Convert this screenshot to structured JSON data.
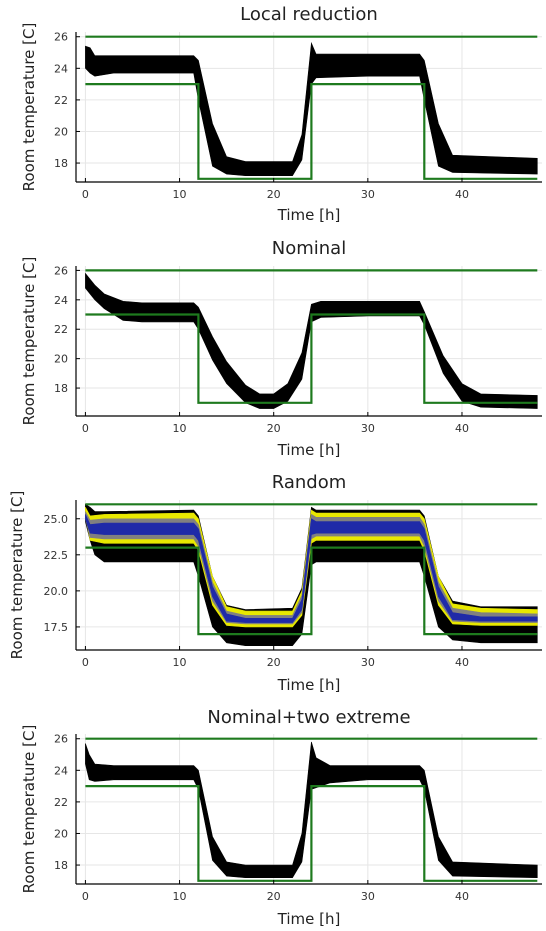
{
  "chart_data": [
    {
      "type": "line",
      "title": "Local reduction",
      "xlabel": "Time [h]",
      "ylabel": "Room temperature [C]",
      "xlim": [
        -1,
        48.5
      ],
      "ylim": [
        16.8,
        26.3
      ],
      "xticks": [
        0,
        10,
        20,
        30,
        40
      ],
      "yticks": [
        18,
        20,
        22,
        24,
        26
      ],
      "ytick_labels": [
        "18",
        "20",
        "22",
        "24",
        "26"
      ],
      "grid": true,
      "bounds": {
        "color": "#1e7a1e",
        "upper": {
          "x": [
            0,
            48
          ],
          "y": [
            26,
            26
          ]
        },
        "lower": {
          "x": [
            0,
            12,
            12,
            24,
            24,
            36,
            36,
            48
          ],
          "y": [
            23,
            23,
            17,
            17,
            23,
            23,
            17,
            17
          ]
        }
      },
      "bands": [
        {
          "name": "trajectories",
          "color": "#000000",
          "x": [
            0,
            0.5,
            1,
            3,
            6,
            11.5,
            12,
            13.5,
            15,
            17,
            22,
            23,
            24,
            24.5,
            30,
            35.5,
            36,
            37.5,
            39,
            48
          ],
          "upper": [
            25.4,
            25.3,
            24.8,
            24.8,
            24.8,
            24.8,
            24.5,
            20.5,
            18.4,
            18.1,
            18.1,
            19.8,
            25.6,
            24.9,
            24.9,
            24.9,
            24.5,
            20.5,
            18.5,
            18.3
          ],
          "lower": [
            24.0,
            23.7,
            23.5,
            23.7,
            23.7,
            23.7,
            22.0,
            17.8,
            17.3,
            17.2,
            17.2,
            18.2,
            23.0,
            23.4,
            23.5,
            23.5,
            22.0,
            17.8,
            17.4,
            17.3
          ]
        }
      ]
    },
    {
      "type": "line",
      "title": "Nominal",
      "xlabel": "Time [h]",
      "ylabel": "Room temperature [C]",
      "xlim": [
        -1,
        48.5
      ],
      "ylim": [
        16.1,
        26.3
      ],
      "xticks": [
        0,
        10,
        20,
        30,
        40
      ],
      "yticks": [
        18,
        20,
        22,
        24,
        26
      ],
      "ytick_labels": [
        "18",
        "20",
        "22",
        "24",
        "26"
      ],
      "grid": true,
      "bounds": {
        "color": "#1e7a1e",
        "upper": {
          "x": [
            0,
            48
          ],
          "y": [
            26,
            26
          ]
        },
        "lower": {
          "x": [
            0,
            12,
            12,
            24,
            24,
            36,
            36,
            48
          ],
          "y": [
            23,
            23,
            17,
            17,
            23,
            23,
            17,
            17
          ]
        }
      },
      "bands": [
        {
          "name": "trajectories",
          "color": "#000000",
          "x": [
            0,
            1,
            2,
            4,
            6,
            11.5,
            12,
            13.5,
            15,
            17,
            18.5,
            20,
            21.5,
            23,
            24,
            25,
            30,
            35.5,
            36,
            38,
            40,
            42,
            48
          ],
          "upper": [
            25.8,
            25.0,
            24.4,
            23.9,
            23.8,
            23.8,
            23.5,
            21.5,
            19.8,
            18.2,
            17.6,
            17.6,
            18.3,
            20.4,
            23.7,
            23.9,
            23.9,
            23.9,
            23.2,
            20.2,
            18.3,
            17.6,
            17.5
          ],
          "lower": [
            24.8,
            24.0,
            23.4,
            22.6,
            22.5,
            22.5,
            22.0,
            19.9,
            18.3,
            17.0,
            16.6,
            16.6,
            17.1,
            18.6,
            22.5,
            22.8,
            22.9,
            22.9,
            22.3,
            19.0,
            17.1,
            16.7,
            16.6
          ]
        }
      ]
    },
    {
      "type": "line",
      "title": "Random",
      "xlabel": "Time [h]",
      "ylabel": "Room temperature [C]",
      "xlim": [
        -1,
        48.5
      ],
      "ylim": [
        15.9,
        26.3
      ],
      "xticks": [
        0,
        10,
        20,
        30,
        40
      ],
      "yticks": [
        17.5,
        20,
        22.5,
        25
      ],
      "ytick_labels": [
        "17.5",
        "20.0",
        "22.5",
        "25.0"
      ],
      "grid": true,
      "bounds": {
        "color": "#1e7a1e",
        "upper": {
          "x": [
            0,
            48
          ],
          "y": [
            26,
            26
          ]
        },
        "lower": {
          "x": [
            0,
            12,
            12,
            24,
            24,
            36,
            36,
            48
          ],
          "y": [
            23,
            23,
            17,
            17,
            23,
            23,
            17,
            17
          ]
        }
      },
      "bands": [
        {
          "name": "trajectories",
          "color": "#000000",
          "x": [
            0,
            0.5,
            1,
            2,
            11.5,
            12,
            13.5,
            15,
            17,
            22,
            23,
            24,
            24.5,
            30,
            35.5,
            36,
            37.5,
            39,
            42,
            48
          ],
          "upper": [
            26.0,
            25.8,
            25.5,
            25.5,
            25.6,
            25.2,
            21.0,
            19.0,
            18.7,
            18.8,
            20.2,
            25.8,
            25.6,
            25.6,
            25.6,
            25.2,
            21.0,
            19.3,
            18.9,
            18.9
          ],
          "lower": [
            24.8,
            23.5,
            22.5,
            22.0,
            22.0,
            21.0,
            17.5,
            16.4,
            16.2,
            16.2,
            17.0,
            21.8,
            22.0,
            22.0,
            22.0,
            21.0,
            17.5,
            16.6,
            16.4,
            16.4
          ]
        },
        {
          "name": "trajectories",
          "color": "#e8e800",
          "x": [
            0,
            0.5,
            2,
            11.5,
            12,
            13.5,
            15,
            17,
            22,
            23,
            24,
            24.5,
            30,
            35.5,
            36,
            37.5,
            39,
            42,
            48
          ],
          "upper": [
            25.8,
            25.2,
            25.3,
            25.4,
            25.0,
            21.0,
            18.9,
            18.6,
            18.6,
            20.0,
            25.6,
            25.4,
            25.4,
            25.4,
            25.0,
            21.0,
            19.1,
            18.8,
            18.7
          ],
          "lower": [
            25.2,
            23.5,
            23.3,
            23.3,
            22.8,
            19.0,
            17.6,
            17.5,
            17.5,
            18.3,
            23.3,
            23.5,
            23.5,
            23.5,
            22.8,
            19.0,
            17.7,
            17.6,
            17.6
          ]
        },
        {
          "name": "trajectories",
          "color": "#808080",
          "x": [
            0,
            0.5,
            2,
            11.5,
            12,
            13.5,
            15,
            17,
            22,
            23,
            24,
            24.5,
            30,
            35.5,
            36,
            37.5,
            39,
            42,
            48
          ],
          "upper": [
            25.5,
            24.9,
            25.0,
            25.0,
            24.6,
            20.6,
            18.6,
            18.3,
            18.3,
            19.7,
            25.3,
            25.1,
            25.1,
            25.1,
            24.6,
            20.6,
            18.8,
            18.5,
            18.4
          ],
          "lower": [
            25.0,
            23.7,
            23.6,
            23.6,
            23.1,
            19.3,
            17.8,
            17.7,
            17.7,
            18.5,
            23.6,
            23.8,
            23.8,
            23.8,
            23.1,
            19.3,
            17.9,
            17.8,
            17.8
          ]
        },
        {
          "name": "trajectories",
          "color": "#1f2aa8",
          "x": [
            0,
            0.5,
            2,
            11.5,
            12,
            13.5,
            15,
            17,
            22,
            23,
            24,
            24.5,
            30,
            35.5,
            36,
            37.5,
            39,
            42,
            48
          ],
          "upper": [
            25.3,
            24.6,
            24.7,
            24.7,
            24.3,
            20.3,
            18.4,
            18.1,
            18.1,
            19.4,
            25.0,
            24.8,
            24.8,
            24.8,
            24.3,
            20.3,
            18.5,
            18.2,
            18.2
          ],
          "lower": [
            25.0,
            24.0,
            23.9,
            23.9,
            23.5,
            19.6,
            17.9,
            17.8,
            17.8,
            18.7,
            23.9,
            24.0,
            24.0,
            24.0,
            23.5,
            19.6,
            18.0,
            17.9,
            17.9
          ]
        }
      ]
    },
    {
      "type": "line",
      "title": "Nominal+two extreme",
      "xlabel": "Time [h]",
      "ylabel": "Room temperature [C]",
      "xlim": [
        -1,
        48.5
      ],
      "ylim": [
        16.8,
        26.3
      ],
      "xticks": [
        0,
        10,
        20,
        30,
        40
      ],
      "yticks": [
        18,
        20,
        22,
        24,
        26
      ],
      "ytick_labels": [
        "18",
        "20",
        "22",
        "24",
        "26"
      ],
      "grid": true,
      "bounds": {
        "color": "#1e7a1e",
        "upper": {
          "x": [
            0,
            48
          ],
          "y": [
            26,
            26
          ]
        },
        "lower": {
          "x": [
            0,
            12,
            12,
            24,
            24,
            36,
            36,
            48
          ],
          "y": [
            23,
            23,
            17,
            17,
            23,
            23,
            17,
            17
          ]
        }
      },
      "bands": [
        {
          "name": "trajectories",
          "color": "#000000",
          "x": [
            0,
            0.4,
            1,
            3,
            11.5,
            12,
            13.5,
            15,
            17,
            22,
            23,
            24,
            24.5,
            26,
            30,
            35.5,
            36,
            37.5,
            39,
            48
          ],
          "upper": [
            25.7,
            25.0,
            24.4,
            24.3,
            24.3,
            24.0,
            19.8,
            18.2,
            18.0,
            18.0,
            20.0,
            25.8,
            24.8,
            24.3,
            24.3,
            24.3,
            24.0,
            19.8,
            18.2,
            18.0
          ],
          "lower": [
            24.4,
            23.4,
            23.3,
            23.4,
            23.4,
            22.8,
            18.3,
            17.3,
            17.2,
            17.2,
            18.2,
            22.8,
            22.9,
            23.2,
            23.4,
            23.4,
            22.8,
            18.3,
            17.3,
            17.2
          ]
        }
      ]
    }
  ]
}
